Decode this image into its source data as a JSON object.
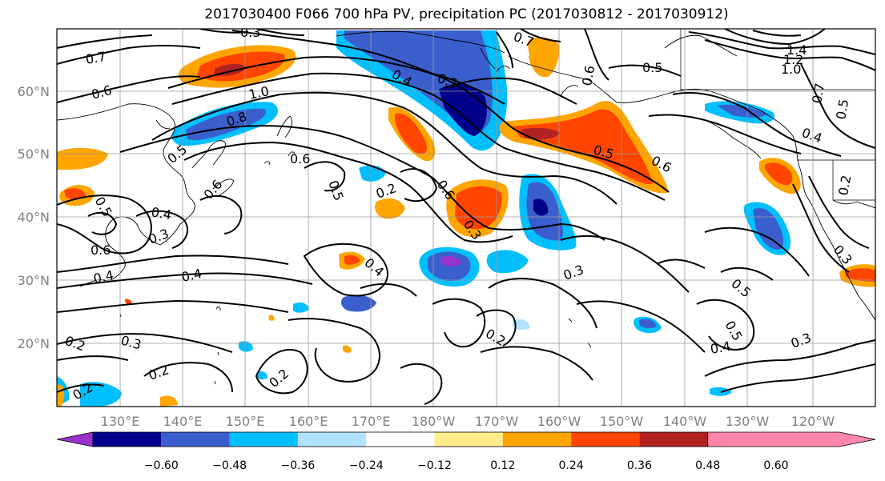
{
  "title": "2017030400 F066 700 hPa PV, precipitation PC (2017030812 - 2017030912)",
  "axes": {
    "lat_ticks": [
      "60°N",
      "50°N",
      "40°N",
      "30°N",
      "20°N"
    ],
    "lon_ticks": [
      "130°E",
      "140°E",
      "150°E",
      "160°E",
      "170°E",
      "180°W",
      "170°W",
      "160°W",
      "150°W",
      "140°W",
      "130°W",
      "120°W"
    ]
  },
  "colorbar": {
    "colors": [
      "#9932cc",
      "#00008b",
      "#3a5fcd",
      "#00bfff",
      "#b0e2ff",
      "#ffffff",
      "#ffec8b",
      "#ffa500",
      "#ff4500",
      "#b22222",
      "#ff88aa"
    ],
    "labels": [
      "−0.60",
      "−0.48",
      "−0.36",
      "−0.24",
      "−0.12",
      "0.12",
      "0.24",
      "0.36",
      "0.48",
      "0.60"
    ]
  },
  "pv_contour_labels": [
    "0.3",
    "0.7",
    "0.6",
    "0.8",
    "1.0",
    "0.5",
    "0.4",
    "0.3",
    "0.7",
    "0.6",
    "0.5",
    "1.4",
    "1.2",
    "1.0",
    "0.7",
    "0.5",
    "0.4",
    "0.6",
    "0.5",
    "0.6",
    "0.6",
    "0.3",
    "0.2",
    "0.6",
    "0.5",
    "0.4",
    "0.3",
    "0.6",
    "0.5",
    "0.4",
    "0.4",
    "0.4",
    "0.3",
    "0.5",
    "0.3",
    "0.2",
    "0.3",
    "0.2",
    "0.2",
    "0.2",
    "0.2",
    "0.2",
    "0.5",
    "0.4",
    "0.3"
  ],
  "precip_anomalies": [
    {
      "sign": "positive",
      "level": 0.48
    },
    {
      "sign": "negative",
      "level": -0.48
    },
    {
      "sign": "negative",
      "level": -0.6
    },
    {
      "sign": "positive",
      "level": 0.36
    },
    {
      "sign": "positive",
      "level": 0.48
    },
    {
      "sign": "positive",
      "level": 0.36
    },
    {
      "sign": "negative",
      "level": -0.48
    },
    {
      "sign": "positive",
      "level": 0.36
    },
    {
      "sign": "negative",
      "level": -0.36
    },
    {
      "sign": "negative",
      "level": -0.6
    },
    {
      "sign": "positive",
      "level": 0.24
    },
    {
      "sign": "positive",
      "level": 0.36
    },
    {
      "sign": "negative",
      "level": -0.36
    },
    {
      "sign": "negative",
      "level": -0.36
    },
    {
      "sign": "positive",
      "level": 0.36
    }
  ]
}
